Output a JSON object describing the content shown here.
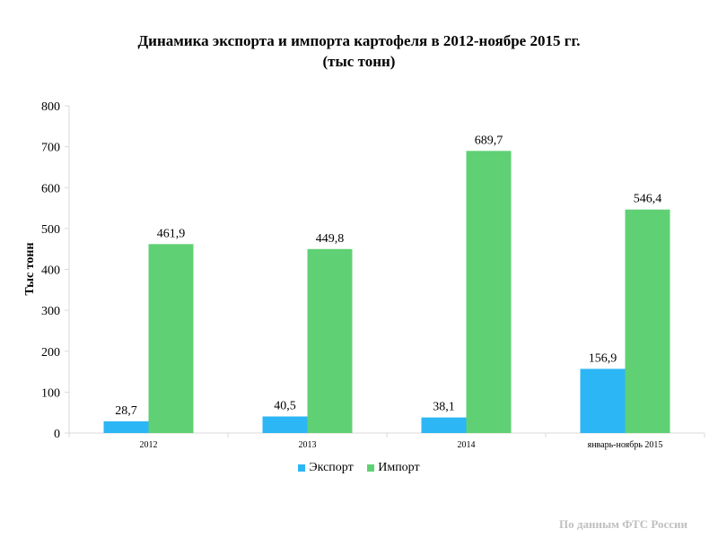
{
  "title_line1": "Динамика экспорта и импорта картофеля в 2012-ноябре 2015 гг.",
  "title_line2": "(тыс тонн)",
  "source_note": "По данным ФТС России",
  "colors": {
    "export": "#2DB6F5",
    "import": "#5FD174"
  },
  "chart_data": {
    "type": "bar",
    "title": "Динамика экспорта и импорта картофеля в 2012-ноябре 2015 гг. (тыс тонн)",
    "xlabel": "",
    "ylabel": "Тыс тонн",
    "ylim": [
      0,
      800
    ],
    "yticks": [
      0,
      100,
      200,
      300,
      400,
      500,
      600,
      700,
      800
    ],
    "categories": [
      "2012",
      "2013",
      "2014",
      "январь-ноябрь 2015"
    ],
    "series": [
      {
        "name": "Экспорт",
        "values": [
          28.7,
          40.5,
          38.1,
          156.9
        ],
        "labels": [
          "28,7",
          "40,5",
          "38,1",
          "156,9"
        ]
      },
      {
        "name": "Импорт",
        "values": [
          461.9,
          449.8,
          689.7,
          546.4
        ],
        "labels": [
          "461,9",
          "449,8",
          "689,7",
          "546,4"
        ]
      }
    ],
    "grid": false,
    "legend": "bottom"
  }
}
